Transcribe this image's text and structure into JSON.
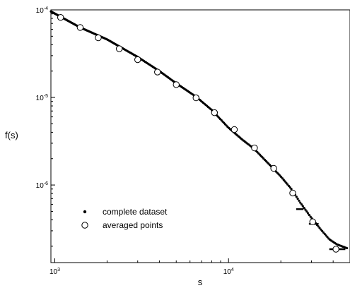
{
  "chart_data": {
    "type": "scatter",
    "title": "",
    "xlabel": "s",
    "ylabel": "f(s)",
    "xscale": "log",
    "yscale": "log",
    "xlim": [
      950,
      50000
    ],
    "ylim": [
      1.3e-07,
      0.0001
    ],
    "grid": false,
    "legend_position": "bottom-left",
    "x_ticks": [
      {
        "value": 1000,
        "base": "10",
        "exp": "3"
      },
      {
        "value": 10000,
        "base": "10",
        "exp": "4"
      }
    ],
    "y_ticks": [
      {
        "value": 1e-06,
        "base": "10",
        "exp": "-6"
      },
      {
        "value": 1e-05,
        "base": "10",
        "exp": "-5"
      },
      {
        "value": 0.0001,
        "base": "10",
        "exp": "-4"
      }
    ],
    "series": [
      {
        "name": "complete dataset",
        "marker": "dot",
        "color": "#000000",
        "curve": {
          "x": [
            950,
            1400,
            2000,
            3000,
            4000,
            5000,
            6500,
            8000,
            10000,
            12000,
            14000,
            17000,
            20000,
            23000,
            26000,
            30000,
            34000,
            38000,
            42000,
            48000
          ],
          "y": [
            9.6e-05,
            6.3e-05,
            4.6e-05,
            2.9e-05,
            2e-05,
            1.45e-05,
            1.02e-05,
            7.2e-06,
            4.5e-06,
            3.3e-06,
            2.6e-06,
            1.75e-06,
            1.25e-06,
            9e-07,
            6.2e-07,
            4.2e-07,
            3.1e-07,
            2.4e-07,
            2.1e-07,
            1.9e-07
          ]
        },
        "steps": [
          {
            "x": 24500,
            "x_end": 27000,
            "y": 5.3e-07
          },
          {
            "x": 29000,
            "x_end": 33000,
            "y": 3.6e-07
          },
          {
            "x": 38000,
            "x_end": 47000,
            "y": 1.85e-07
          }
        ]
      },
      {
        "name": "averaged points",
        "marker": "open-circle",
        "color": "#000000",
        "x": [
          1080,
          1400,
          1780,
          2350,
          3000,
          3900,
          5000,
          6500,
          8300,
          10800,
          14100,
          18200,
          23400,
          30500,
          41500
        ],
        "y": [
          8.2e-05,
          6.3e-05,
          4.8e-05,
          3.6e-05,
          2.7e-05,
          1.95e-05,
          1.4e-05,
          9.9e-06,
          6.7e-06,
          4.3e-06,
          2.65e-06,
          1.55e-06,
          8.1e-07,
          3.8e-07,
          1.85e-07
        ]
      }
    ]
  }
}
